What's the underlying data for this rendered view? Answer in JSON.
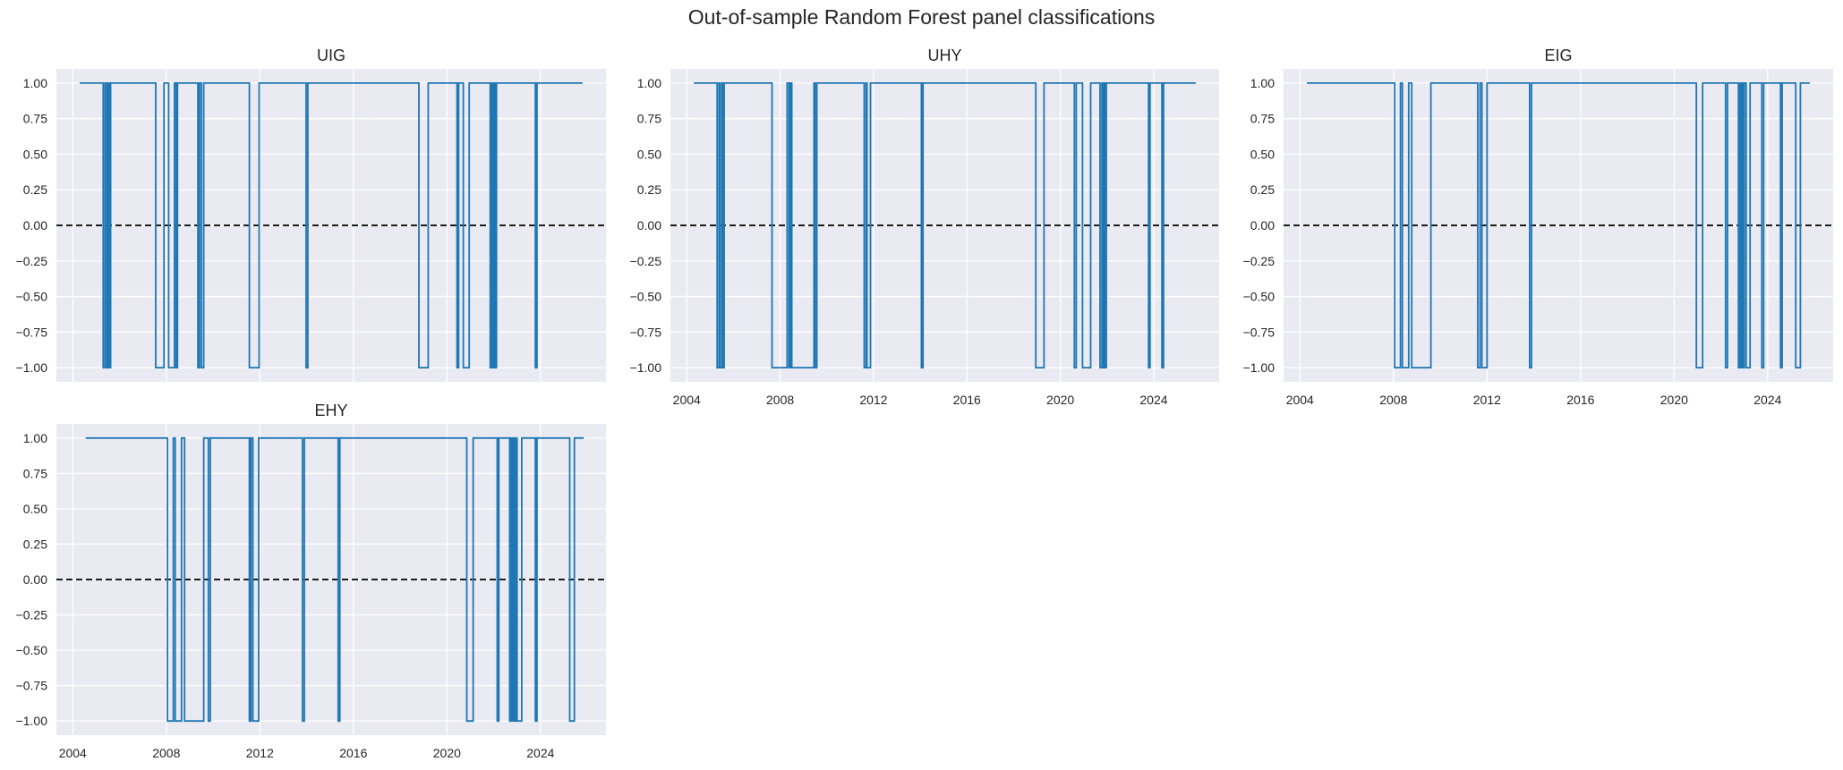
{
  "figure": {
    "title": "Out-of-sample Random Forest panel classifications",
    "background": "#ffffff",
    "axes_facecolor": "#eaeaf2",
    "grid_color": "#ffffff",
    "line_color": "#1f77b4",
    "zero_line_color": "#000000"
  },
  "chart_data": [
    {
      "type": "line",
      "title": "UIG",
      "xlabel": "",
      "ylabel": "",
      "xlim": [
        2003.3,
        2026.8
      ],
      "ylim": [
        -1.1,
        1.1
      ],
      "yticks": [
        "1.00",
        "0.75",
        "0.50",
        "0.25",
        "0.00",
        "−0.25",
        "−0.50",
        "−0.75",
        "−1.00"
      ],
      "xticks": [],
      "xtick_labels_visible": false,
      "grid": true,
      "hline": {
        "y": 0.0,
        "style": "dashed",
        "color": "#000000"
      },
      "step": true,
      "start": 2004.3,
      "end": 2025.8,
      "default_value": 1,
      "negative_periods": [
        [
          2005.3,
          2005.38
        ],
        [
          2005.45,
          2005.52
        ],
        [
          2005.55,
          2005.62
        ],
        [
          2007.55,
          2007.9
        ],
        [
          2008.1,
          2008.35
        ],
        [
          2008.42,
          2008.48
        ],
        [
          2009.35,
          2009.42
        ],
        [
          2009.5,
          2009.6
        ],
        [
          2011.55,
          2011.97
        ],
        [
          2013.98,
          2014.05
        ],
        [
          2018.8,
          2019.2
        ],
        [
          2020.43,
          2020.5
        ],
        [
          2020.7,
          2020.95
        ],
        [
          2021.85,
          2021.92
        ],
        [
          2021.97,
          2022.04
        ],
        [
          2022.07,
          2022.12
        ],
        [
          2023.78,
          2023.85
        ]
      ]
    },
    {
      "type": "line",
      "title": "UHY",
      "xlabel": "",
      "ylabel": "",
      "xlim": [
        2003.3,
        2026.8
      ],
      "ylim": [
        -1.1,
        1.1
      ],
      "yticks": [
        "1.00",
        "0.75",
        "0.50",
        "0.25",
        "0.00",
        "−0.25",
        "−0.50",
        "−0.75",
        "−1.00"
      ],
      "xticks": [
        "2004",
        "2008",
        "2012",
        "2016",
        "2020",
        "2024"
      ],
      "grid": true,
      "hline": {
        "y": 0.0,
        "style": "dashed",
        "color": "#000000"
      },
      "step": true,
      "start": 2004.3,
      "end": 2025.8,
      "default_value": 1,
      "negative_periods": [
        [
          2005.3,
          2005.38
        ],
        [
          2005.42,
          2005.5
        ],
        [
          2005.53,
          2005.6
        ],
        [
          2007.65,
          2008.3
        ],
        [
          2008.38,
          2008.45
        ],
        [
          2008.5,
          2009.45
        ],
        [
          2009.5,
          2009.57
        ],
        [
          2011.6,
          2011.68
        ],
        [
          2011.72,
          2011.87
        ],
        [
          2014.05,
          2014.12
        ],
        [
          2018.95,
          2019.3
        ],
        [
          2020.6,
          2020.68
        ],
        [
          2020.95,
          2021.3
        ],
        [
          2021.7,
          2021.78
        ],
        [
          2021.82,
          2021.88
        ],
        [
          2021.9,
          2021.97
        ],
        [
          2023.78,
          2023.84
        ],
        [
          2024.35,
          2024.42
        ]
      ]
    },
    {
      "type": "line",
      "title": "EIG",
      "xlabel": "",
      "ylabel": "",
      "xlim": [
        2003.3,
        2026.8
      ],
      "ylim": [
        -1.1,
        1.1
      ],
      "yticks": [
        "1.00",
        "0.75",
        "0.50",
        "0.25",
        "0.00",
        "−0.25",
        "−0.50",
        "−0.75",
        "−1.00"
      ],
      "xticks": [
        "2004",
        "2008",
        "2012",
        "2016",
        "2020",
        "2024"
      ],
      "grid": true,
      "hline": {
        "y": 0.0,
        "style": "dashed",
        "color": "#000000"
      },
      "step": true,
      "start": 2004.3,
      "end": 2025.8,
      "default_value": 1,
      "negative_periods": [
        [
          2008.05,
          2008.3
        ],
        [
          2008.38,
          2008.65
        ],
        [
          2008.78,
          2009.6
        ],
        [
          2011.6,
          2011.7
        ],
        [
          2011.78,
          2012.0
        ],
        [
          2013.82,
          2013.9
        ],
        [
          2020.95,
          2021.22
        ],
        [
          2022.2,
          2022.28
        ],
        [
          2022.75,
          2022.8
        ],
        [
          2022.85,
          2022.9
        ],
        [
          2022.95,
          2023.0
        ],
        [
          2023.08,
          2023.25
        ],
        [
          2023.75,
          2023.83
        ],
        [
          2024.55,
          2024.62
        ],
        [
          2025.2,
          2025.4
        ]
      ]
    },
    {
      "type": "line",
      "title": "EHY",
      "xlabel": "",
      "ylabel": "",
      "xlim": [
        2003.3,
        2026.8
      ],
      "ylim": [
        -1.1,
        1.1
      ],
      "yticks": [
        "1.00",
        "0.75",
        "0.50",
        "0.25",
        "0.00",
        "−0.25",
        "−0.50",
        "−0.75",
        "−1.00"
      ],
      "xticks": [
        "2004",
        "2008",
        "2012",
        "2016",
        "2020",
        "2024"
      ],
      "grid": true,
      "hline": {
        "y": 0.0,
        "style": "dashed",
        "color": "#000000"
      },
      "step": true,
      "start": 2004.55,
      "end": 2025.85,
      "default_value": 1,
      "negative_periods": [
        [
          2008.05,
          2008.3
        ],
        [
          2008.38,
          2008.65
        ],
        [
          2008.78,
          2009.6
        ],
        [
          2009.8,
          2009.88
        ],
        [
          2011.55,
          2011.62
        ],
        [
          2011.7,
          2011.95
        ],
        [
          2013.82,
          2013.9
        ],
        [
          2015.35,
          2015.42
        ],
        [
          2020.85,
          2021.12
        ],
        [
          2022.15,
          2022.22
        ],
        [
          2022.68,
          2022.74
        ],
        [
          2022.8,
          2022.85
        ],
        [
          2022.9,
          2022.95
        ],
        [
          2023.0,
          2023.2
        ],
        [
          2023.78,
          2023.85
        ],
        [
          2025.25,
          2025.45
        ]
      ]
    }
  ]
}
